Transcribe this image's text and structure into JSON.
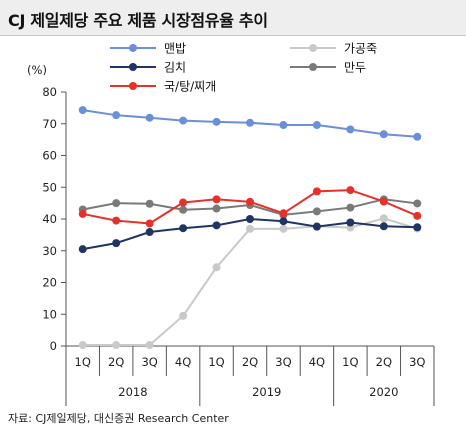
{
  "title": "CJ 제일제당 주요 제품 시장점유율 추이",
  "source": "자료: CJ제일제당, 대신증권 Research Center",
  "chart_data": {
    "type": "line",
    "y_unit": "(%)",
    "ylim": [
      0,
      80
    ],
    "yticks": [
      0,
      10,
      20,
      30,
      40,
      50,
      60,
      70,
      80
    ],
    "categories": [
      "1Q",
      "2Q",
      "3Q",
      "4Q",
      "1Q",
      "2Q",
      "3Q",
      "4Q",
      "1Q",
      "2Q",
      "3Q"
    ],
    "year_groups": [
      {
        "label": "2018",
        "count": 4
      },
      {
        "label": "2019",
        "count": 4
      },
      {
        "label": "2020",
        "count": 3
      }
    ],
    "grid": false,
    "legend_position": "top",
    "series": [
      {
        "name": "맨밥",
        "color": "#6b8fd8",
        "values": [
          74.3,
          72.7,
          71.9,
          71.0,
          70.6,
          70.3,
          69.6,
          69.6,
          68.2,
          66.7,
          65.9
        ]
      },
      {
        "name": "가공죽",
        "color": "#c9c9c9",
        "values": [
          0.3,
          0.3,
          0.3,
          9.5,
          24.8,
          36.9,
          36.9,
          37.7,
          37.3,
          40.2,
          37.0
        ]
      },
      {
        "name": "김치",
        "color": "#1f3564",
        "values": [
          30.5,
          32.4,
          35.9,
          37.1,
          38.0,
          40.0,
          39.3,
          37.6,
          38.9,
          37.7,
          37.4
        ]
      },
      {
        "name": "만두",
        "color": "#7a7a7a",
        "values": [
          43.0,
          45.0,
          44.8,
          42.9,
          43.3,
          44.4,
          41.3,
          42.4,
          43.6,
          46.2,
          44.9
        ]
      },
      {
        "name": "국/탕/찌개",
        "color": "#e8302a",
        "values": [
          41.6,
          39.5,
          38.6,
          45.2,
          46.2,
          45.4,
          41.8,
          48.7,
          49.1,
          45.5,
          41.0
        ]
      }
    ]
  }
}
